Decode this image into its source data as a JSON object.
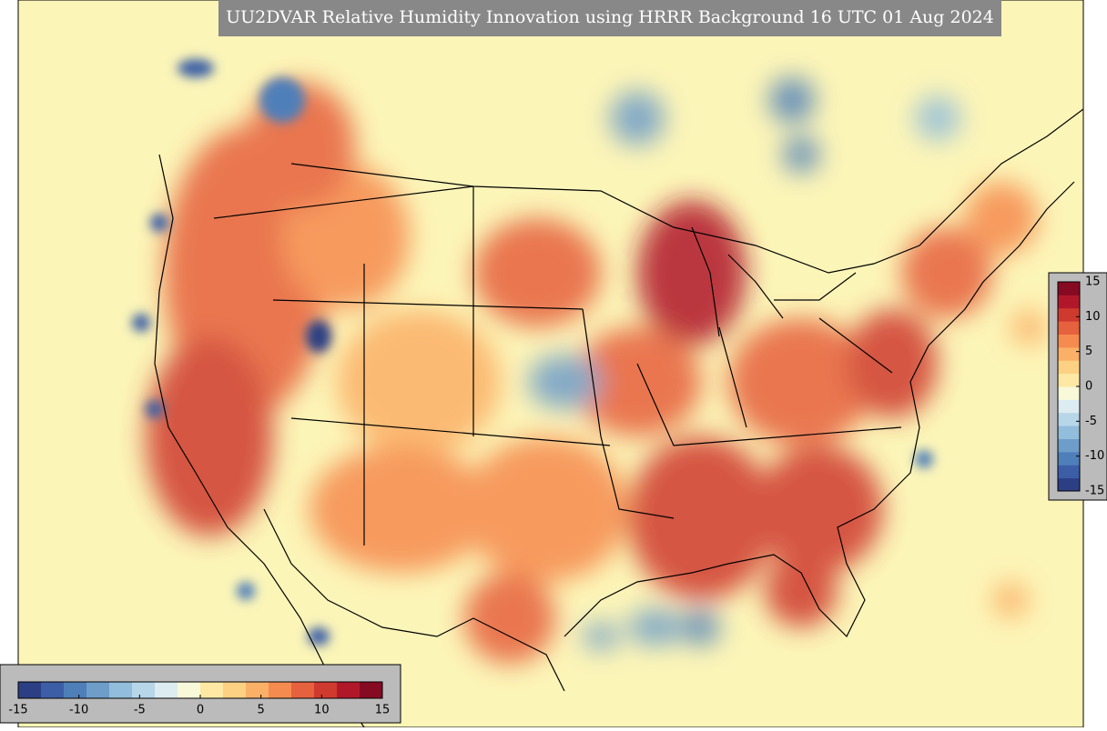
{
  "title": "UU2DVAR Relative Humidity Innovation using HRRR Background 16 UTC 01 Aug 2024",
  "colors": [
    "#2c3f84",
    "#3b5ea6",
    "#4f7fb9",
    "#6e9dc9",
    "#92bddb",
    "#b7d6e8",
    "#dcecf0",
    "#f7f9d9",
    "#fde9a4",
    "#fcd184",
    "#fbb067",
    "#f68b4f",
    "#e6613e",
    "#cf3a2e",
    "#b0182a",
    "#870a23"
  ],
  "horizontal_colorbar": {
    "range": [
      -15,
      15
    ],
    "ticks": [
      -15,
      -10,
      -5,
      0,
      5,
      10,
      15
    ]
  },
  "vertical_colorbar": {
    "range": [
      -15,
      15
    ],
    "ticks": [
      15,
      10,
      5,
      0,
      -5,
      -10,
      -15
    ]
  }
}
